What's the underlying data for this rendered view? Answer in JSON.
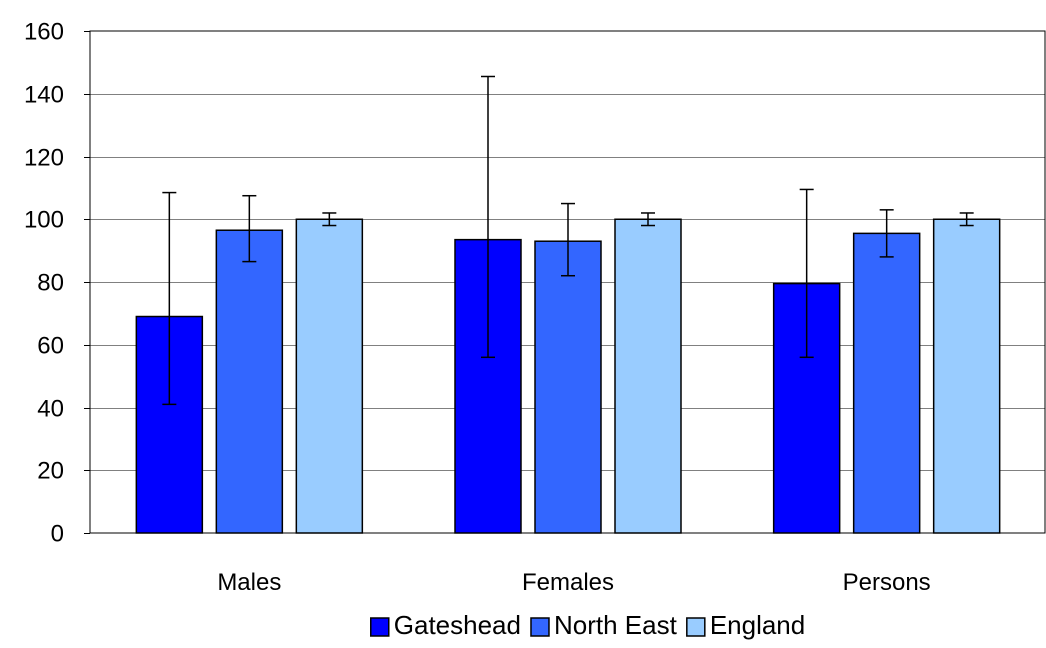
{
  "chart_data": {
    "type": "bar",
    "categories": [
      "Males",
      "Females",
      "Persons"
    ],
    "series": [
      {
        "name": "Gateshead",
        "color": "#0000ff",
        "values": [
          69,
          93.5,
          79.5
        ],
        "error_low": [
          41,
          56,
          56
        ],
        "error_high": [
          108.5,
          145.5,
          109.5
        ]
      },
      {
        "name": "North East",
        "color": "#3366ff",
        "values": [
          96.5,
          93,
          95.5
        ],
        "error_low": [
          86.5,
          82,
          88
        ],
        "error_high": [
          107.5,
          105,
          103
        ]
      },
      {
        "name": "England",
        "color": "#99ccff",
        "values": [
          100,
          100,
          100
        ],
        "error_low": [
          98,
          98,
          98
        ],
        "error_high": [
          102,
          102,
          102
        ]
      }
    ],
    "y_ticks": [
      "0",
      "20",
      "40",
      "60",
      "80",
      "100",
      "120",
      "140",
      "160"
    ],
    "ylim": [
      0,
      160
    ],
    "grid": true,
    "legend_position": "bottom",
    "title": "",
    "xlabel": "",
    "ylabel": ""
  }
}
